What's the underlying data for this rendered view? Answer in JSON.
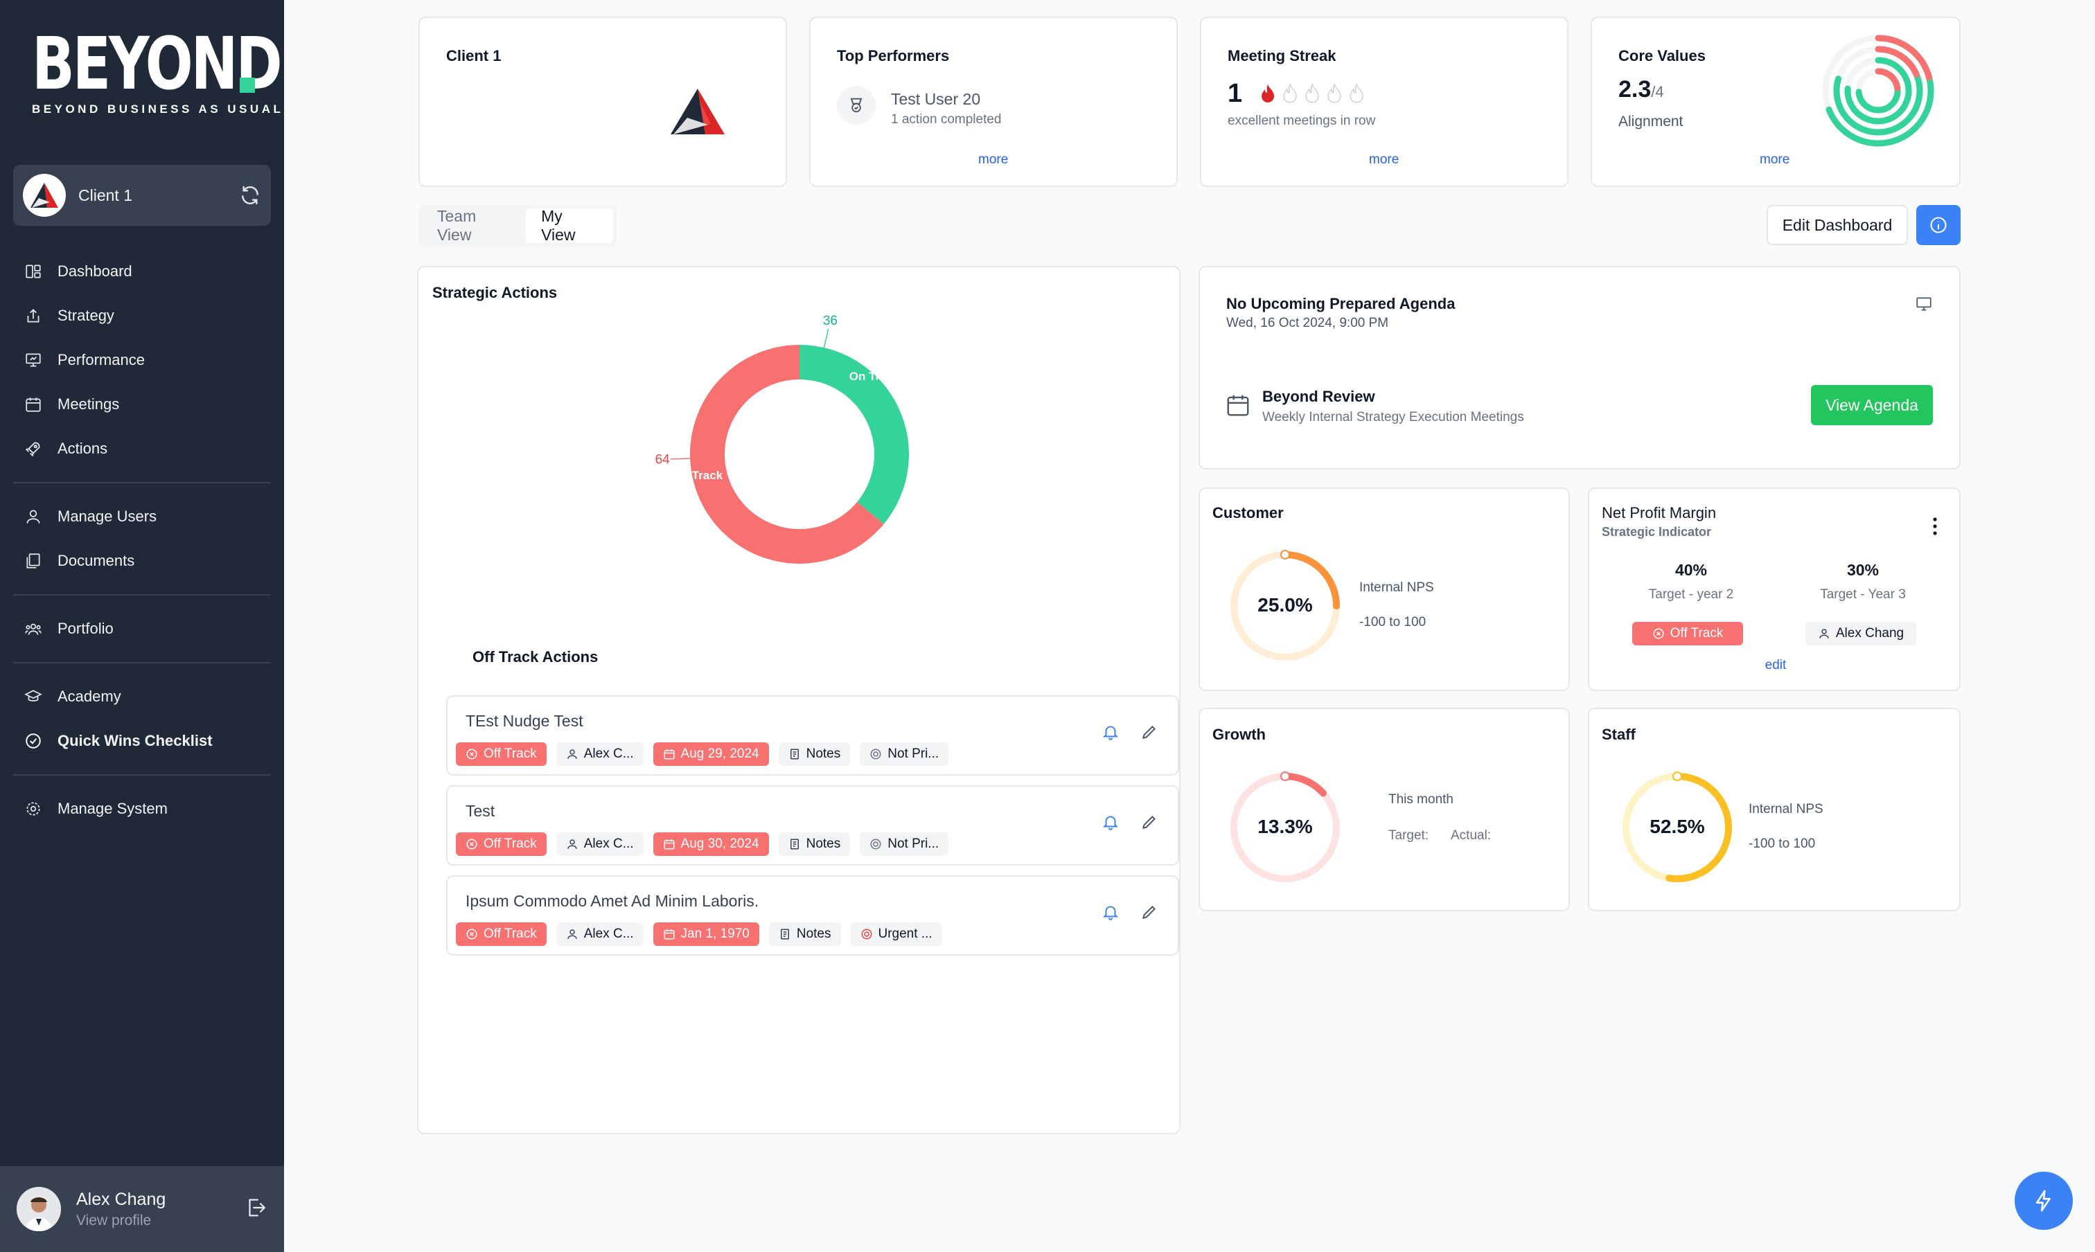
{
  "brand": {
    "logo_text": "BEYOND",
    "tagline": "BEYOND BUSINESS AS USUAL",
    "accent": "#34d399"
  },
  "client_switcher": {
    "name": "Client 1"
  },
  "nav": {
    "dashboard": "Dashboard",
    "strategy": "Strategy",
    "performance": "Performance",
    "meetings": "Meetings",
    "actions": "Actions",
    "manage_users": "Manage Users",
    "documents": "Documents",
    "portfolio": "Portfolio",
    "academy": "Academy",
    "quick_wins": "Quick Wins Checklist",
    "manage_system": "Manage System"
  },
  "user": {
    "name": "Alex Chang",
    "sub": "View profile"
  },
  "top_cards": {
    "client": {
      "title": "Client 1"
    },
    "performers": {
      "title": "Top Performers",
      "user": "Test User 20",
      "detail": "1 action completed",
      "more": "more"
    },
    "streak": {
      "title": "Meeting Streak",
      "count": "1",
      "caption": "excellent meetings in row",
      "more": "more"
    },
    "core_values": {
      "title": "Core Values",
      "score": "2.3",
      "outof": "/4",
      "label": "Alignment",
      "more": "more"
    }
  },
  "view_toggle": {
    "team": "Team View",
    "mine": "My View"
  },
  "toolbar": {
    "edit": "Edit Dashboard"
  },
  "strategic_actions": {
    "title": "Strategic Actions",
    "off_track_heading": "Off Track Actions"
  },
  "chart_data": {
    "type": "pie",
    "categories": [
      "On Track",
      "Off Track"
    ],
    "values": [
      36,
      64
    ],
    "colors": [
      "#34d399",
      "#f87171"
    ],
    "title": "Strategic Actions"
  },
  "actions": [
    {
      "title": "TEst Nudge Test",
      "status": "Off Track",
      "owner": "Alex C...",
      "date": "Aug 29, 2024",
      "notes": "Notes",
      "priority": "Not Pri...",
      "priority_color": "#6b7280"
    },
    {
      "title": "Test",
      "status": "Off Track",
      "owner": "Alex C...",
      "date": "Aug 30, 2024",
      "notes": "Notes",
      "priority": "Not Pri...",
      "priority_color": "#6b7280"
    },
    {
      "title": "Ipsum Commodo Amet Ad Minim Laboris.",
      "status": "Off Track",
      "owner": "Alex C...",
      "date": "Jan 1, 1970",
      "notes": "Notes",
      "priority": "Urgent ...",
      "priority_color": "#ef4444"
    }
  ],
  "agenda": {
    "title": "No Upcoming Prepared Agenda",
    "datetime": "Wed, 16 Oct 2024, 9:00 PM",
    "meeting_name": "Beyond Review",
    "meeting_desc": "Weekly Internal Strategy Execution Meetings",
    "button": "View Agenda"
  },
  "customer": {
    "title": "Customer",
    "value": "25.0%",
    "progress": 0.25,
    "color": "#fb923c",
    "label": "Internal NPS",
    "range": "-100 to 100"
  },
  "net_profit": {
    "title": "Net Profit Margin",
    "subtitle": "Strategic Indicator",
    "t1_value": "40%",
    "t1_label": "Target - year 2",
    "t1_status": "Off Track",
    "t2_value": "30%",
    "t2_label": "Target - Year 3",
    "t2_owner": "Alex Chang",
    "edit": "edit"
  },
  "growth": {
    "title": "Growth",
    "value": "13.3%",
    "progress": 0.133,
    "color": "#f87171",
    "period": "This month",
    "target": "Target:",
    "actual": "Actual:"
  },
  "staff": {
    "title": "Staff",
    "value": "52.5%",
    "progress": 0.525,
    "color": "#fbbf24",
    "label": "Internal NPS",
    "range": "-100 to 100"
  }
}
